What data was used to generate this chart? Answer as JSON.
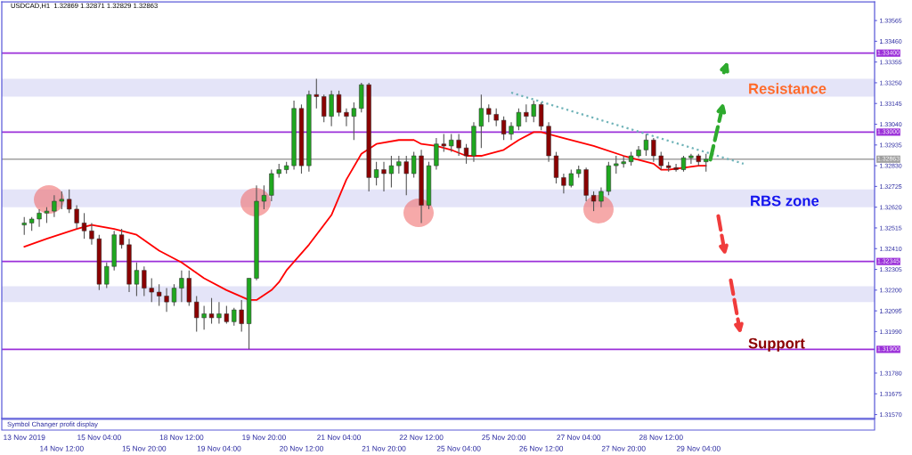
{
  "chart_data": {
    "type": "candlestick",
    "title": "USDCAD,H1  1.32869 1.32871 1.32829 1.32863",
    "categories": [
      "13 Nov 2019",
      null,
      null,
      null,
      null,
      "14 Nov 12:00",
      null,
      null,
      null,
      null,
      "15 Nov 04:00",
      null,
      null,
      null,
      null,
      null,
      "15 Nov 20:00",
      null,
      null,
      null,
      null,
      "18 Nov 12:00",
      null,
      null,
      null,
      null,
      "19 Nov 04:00",
      null,
      null,
      null,
      null,
      null,
      "19 Nov 20:00",
      null,
      null,
      null,
      null,
      "20 Nov 12:00",
      null,
      null,
      null,
      null,
      "21 Nov 04:00",
      null,
      null,
      null,
      null,
      null,
      "21 Nov 20:00",
      null,
      null,
      null,
      null,
      "22 Nov 12:00",
      null,
      null,
      null,
      null,
      "25 Nov 04:00",
      null,
      null,
      null,
      null,
      null,
      "25 Nov 20:00",
      null,
      null,
      null,
      null,
      "26 Nov 12:00",
      null,
      null,
      null,
      null,
      "27 Nov 04:00",
      null,
      null,
      null,
      null,
      null,
      "27 Nov 20:00",
      null,
      null,
      null,
      null,
      "28 Nov 12:00",
      null,
      null,
      null,
      null,
      "29 Nov 04:00",
      null,
      null,
      null,
      null,
      null,
      null,
      null,
      null,
      null,
      null,
      null,
      null,
      null,
      null,
      null,
      null,
      null,
      null,
      null,
      null,
      null,
      null,
      null
    ],
    "ohlc": [
      [
        1.3253,
        1.3257,
        1.3248,
        1.3254
      ],
      [
        1.3254,
        1.3257,
        1.325,
        1.3256
      ],
      [
        1.3256,
        1.3261,
        1.3252,
        1.3259
      ],
      [
        1.3259,
        1.3262,
        1.3254,
        1.326
      ],
      [
        1.326,
        1.3268,
        1.3257,
        1.3265
      ],
      [
        1.3265,
        1.327,
        1.3261,
        1.3266
      ],
      [
        1.3266,
        1.3271,
        1.3259,
        1.3261
      ],
      [
        1.3261,
        1.3263,
        1.3251,
        1.3254
      ],
      [
        1.3254,
        1.3259,
        1.3246,
        1.325
      ],
      [
        1.325,
        1.3254,
        1.3243,
        1.3246
      ],
      [
        1.3246,
        1.3248,
        1.322,
        1.3223
      ],
      [
        1.3223,
        1.3234,
        1.3221,
        1.3232
      ],
      [
        1.3232,
        1.325,
        1.323,
        1.3248
      ],
      [
        1.3248,
        1.3251,
        1.3241,
        1.3243
      ],
      [
        1.3243,
        1.3246,
        1.3219,
        1.3223
      ],
      [
        1.3223,
        1.3234,
        1.3217,
        1.323
      ],
      [
        1.323,
        1.3232,
        1.3217,
        1.3221
      ],
      [
        1.3221,
        1.3226,
        1.3214,
        1.3219
      ],
      [
        1.3219,
        1.3223,
        1.3212,
        1.3217
      ],
      [
        1.3217,
        1.3221,
        1.3209,
        1.3214
      ],
      [
        1.3214,
        1.3223,
        1.3212,
        1.3221
      ],
      [
        1.3221,
        1.323,
        1.3214,
        1.3226
      ],
      [
        1.3226,
        1.323,
        1.3212,
        1.3214
      ],
      [
        1.3214,
        1.3217,
        1.3199,
        1.3206
      ],
      [
        1.3206,
        1.3212,
        1.32,
        1.3208
      ],
      [
        1.3208,
        1.3216,
        1.3203,
        1.3206
      ],
      [
        1.3206,
        1.3214,
        1.3203,
        1.3208
      ],
      [
        1.3208,
        1.3212,
        1.3203,
        1.3204
      ],
      [
        1.3204,
        1.3211,
        1.3202,
        1.321
      ],
      [
        1.321,
        1.3215,
        1.3199,
        1.3203
      ],
      [
        1.3203,
        1.3226,
        1.319,
        1.3226
      ],
      [
        1.3226,
        1.3273,
        1.3225,
        1.3265
      ],
      [
        1.3265,
        1.3273,
        1.3261,
        1.3268
      ],
      [
        1.3268,
        1.3281,
        1.3265,
        1.3279
      ],
      [
        1.3279,
        1.3284,
        1.3277,
        1.3281
      ],
      [
        1.3281,
        1.3285,
        1.3279,
        1.3283
      ],
      [
        1.3283,
        1.3316,
        1.3281,
        1.3312
      ],
      [
        1.3312,
        1.3314,
        1.3279,
        1.3283
      ],
      [
        1.3283,
        1.3321,
        1.328,
        1.3319
      ],
      [
        1.3319,
        1.3327,
        1.3312,
        1.3318
      ],
      [
        1.3318,
        1.3319,
        1.3305,
        1.3308
      ],
      [
        1.3308,
        1.3321,
        1.3303,
        1.3319
      ],
      [
        1.3319,
        1.3321,
        1.3308,
        1.331
      ],
      [
        1.331,
        1.3312,
        1.3303,
        1.3308
      ],
      [
        1.3308,
        1.3315,
        1.3296,
        1.3312
      ],
      [
        1.3312,
        1.3325,
        1.331,
        1.3324
      ],
      [
        1.3324,
        1.3325,
        1.327,
        1.3277
      ],
      [
        1.3277,
        1.3285,
        1.3273,
        1.3281
      ],
      [
        1.3281,
        1.3285,
        1.327,
        1.3279
      ],
      [
        1.3279,
        1.3288,
        1.3272,
        1.3283
      ],
      [
        1.3283,
        1.3288,
        1.3279,
        1.3285
      ],
      [
        1.3285,
        1.3288,
        1.3268,
        1.3279
      ],
      [
        1.3279,
        1.329,
        1.3277,
        1.3288
      ],
      [
        1.3288,
        1.3291,
        1.3254,
        1.3263
      ],
      [
        1.3263,
        1.3285,
        1.3261,
        1.3283
      ],
      [
        1.3283,
        1.3297,
        1.3281,
        1.3294
      ],
      [
        1.3294,
        1.3299,
        1.329,
        1.3293
      ],
      [
        1.3293,
        1.3299,
        1.329,
        1.3296
      ],
      [
        1.3296,
        1.3299,
        1.3288,
        1.3292
      ],
      [
        1.3292,
        1.3294,
        1.3284,
        1.3288
      ],
      [
        1.3288,
        1.3305,
        1.3285,
        1.3303
      ],
      [
        1.3303,
        1.3319,
        1.3292,
        1.3312
      ],
      [
        1.3312,
        1.3314,
        1.3305,
        1.3309
      ],
      [
        1.3309,
        1.3312,
        1.3303,
        1.3306
      ],
      [
        1.3306,
        1.3308,
        1.3296,
        1.3299
      ],
      [
        1.3299,
        1.3305,
        1.3296,
        1.3303
      ],
      [
        1.3303,
        1.3312,
        1.3301,
        1.331
      ],
      [
        1.331,
        1.3314,
        1.3305,
        1.3308
      ],
      [
        1.3308,
        1.3316,
        1.3305,
        1.3314
      ],
      [
        1.3314,
        1.3315,
        1.3301,
        1.3303
      ],
      [
        1.3303,
        1.3305,
        1.3285,
        1.3288
      ],
      [
        1.3288,
        1.329,
        1.3274,
        1.3277
      ],
      [
        1.3277,
        1.3279,
        1.3269,
        1.3273
      ],
      [
        1.3273,
        1.3281,
        1.3272,
        1.3279
      ],
      [
        1.3279,
        1.3283,
        1.3277,
        1.3281
      ],
      [
        1.3281,
        1.3282,
        1.3265,
        1.3268
      ],
      [
        1.3268,
        1.327,
        1.326,
        1.3265
      ],
      [
        1.3265,
        1.3272,
        1.3262,
        1.327
      ],
      [
        1.327,
        1.3285,
        1.3268,
        1.3283
      ],
      [
        1.3283,
        1.3288,
        1.3279,
        1.3284
      ],
      [
        1.3284,
        1.3288,
        1.3282,
        1.3285
      ],
      [
        1.3285,
        1.329,
        1.3283,
        1.3288
      ],
      [
        1.3288,
        1.3293,
        1.3287,
        1.3291
      ],
      [
        1.3291,
        1.3299,
        1.3288,
        1.3296
      ],
      [
        1.3296,
        1.3297,
        1.3285,
        1.3288
      ],
      [
        1.3288,
        1.329,
        1.3281,
        1.3283
      ],
      [
        1.3283,
        1.3285,
        1.328,
        1.3282
      ],
      [
        1.3282,
        1.3284,
        1.328,
        1.3281
      ],
      [
        1.3281,
        1.3288,
        1.328,
        1.3287
      ],
      [
        1.3287,
        1.3289,
        1.3284,
        1.3288
      ],
      [
        1.3288,
        1.3289,
        1.3283,
        1.3285
      ],
      [
        1.3285,
        1.3289,
        1.328,
        1.32863
      ],
      null,
      null,
      null,
      null,
      null,
      null,
      null,
      null,
      null,
      null,
      null,
      null,
      null,
      null,
      null,
      null,
      null,
      null,
      null,
      null,
      null,
      null
    ],
    "series": [
      {
        "type": "line",
        "color": "#ff0000",
        "values": [
          1.3242,
          null,
          null,
          1.3246,
          null,
          null,
          null,
          1.3251,
          null,
          1.3253,
          null,
          null,
          1.3251,
          null,
          null,
          1.3248,
          null,
          null,
          1.324,
          null,
          null,
          1.3234,
          null,
          null,
          1.3226,
          null,
          null,
          1.322,
          null,
          null,
          1.3215,
          1.3215,
          null,
          1.322,
          1.3224,
          1.323,
          null,
          null,
          1.3243,
          null,
          null,
          1.3258,
          null,
          1.3276,
          null,
          1.3289,
          null,
          1.3294,
          null,
          null,
          1.3296,
          null,
          1.3296,
          1.3294,
          null,
          1.3293,
          null,
          1.3291,
          null,
          1.3288,
          null,
          1.3288,
          null,
          null,
          1.3291,
          null,
          1.3296,
          null,
          1.33,
          1.33,
          null,
          null,
          1.3297,
          null,
          null,
          null,
          1.3293,
          null,
          null,
          null,
          1.3288,
          null,
          null,
          null,
          1.3284,
          1.3281,
          1.3281,
          null,
          1.3282,
          null,
          1.3283,
          1.3283,
          null,
          null,
          null,
          null,
          null,
          null,
          null,
          null,
          null,
          null,
          null,
          null,
          null,
          null,
          null,
          null,
          null,
          null,
          null,
          null,
          null,
          null
        ]
      },
      {
        "type": "line",
        "color": "#6fb3b8",
        "line_style": "dotted",
        "values": [
          null,
          null,
          null,
          null,
          null,
          null,
          null,
          null,
          null,
          null,
          null,
          null,
          null,
          null,
          null,
          null,
          null,
          null,
          null,
          null,
          null,
          null,
          null,
          null,
          null,
          null,
          null,
          null,
          null,
          null,
          null,
          null,
          null,
          null,
          null,
          null,
          null,
          null,
          null,
          null,
          null,
          null,
          null,
          null,
          null,
          null,
          null,
          null,
          null,
          null,
          null,
          null,
          null,
          null,
          null,
          null,
          null,
          null,
          null,
          null,
          null,
          null,
          null,
          null,
          null,
          1.332,
          null,
          null,
          null,
          null,
          null,
          null,
          null,
          null,
          null,
          null,
          null,
          null,
          null,
          null,
          null,
          null,
          null,
          null,
          null,
          null,
          null,
          null,
          null,
          null,
          null,
          null,
          null,
          null,
          null,
          null,
          1.3284,
          null,
          null,
          null,
          null,
          null,
          null,
          null,
          null,
          null,
          null,
          null,
          null,
          null,
          null,
          null,
          null,
          null
        ]
      }
    ],
    "ylim": [
      1.3155,
      1.3366
    ],
    "yticks": [
      {
        "value": 1.33565,
        "label": "1.33565"
      },
      {
        "value": 1.3346,
        "label": "1.33460"
      },
      {
        "value": 1.33355,
        "label": "1.33355"
      },
      {
        "value": 1.3325,
        "label": "1.33250"
      },
      {
        "value": 1.33145,
        "label": "1.33145"
      },
      {
        "value": 1.3304,
        "label": "1.33040"
      },
      {
        "value": 1.32935,
        "label": "1.32935"
      },
      {
        "value": 1.3283,
        "label": "1.32830"
      },
      {
        "value": 1.32725,
        "label": "1.32725"
      },
      {
        "value": 1.3262,
        "label": "1.32620"
      },
      {
        "value": 1.32515,
        "label": "1.32515"
      },
      {
        "value": 1.3241,
        "label": "1.32410"
      },
      {
        "value": 1.32305,
        "label": "1.32305"
      },
      {
        "value": 1.322,
        "label": "1.32200"
      },
      {
        "value": 1.32095,
        "label": "1.32095"
      },
      {
        "value": 1.3199,
        "label": "1.31990"
      },
      {
        "value": 1.3178,
        "label": "1.31780"
      },
      {
        "value": 1.31675,
        "label": "1.31675"
      },
      {
        "value": 1.3157,
        "label": "1.31570"
      }
    ],
    "ref_lines": [
      {
        "axis": "y",
        "value": 1.334,
        "label": "1.33400",
        "color": "#9b30d9"
      },
      {
        "axis": "y",
        "value": 1.33,
        "label": "1.33000",
        "color": "#9b30d9"
      },
      {
        "axis": "y",
        "value": 1.32863,
        "label": "1.32863",
        "color": "#a0a0a0"
      },
      {
        "axis": "y",
        "value": 1.32345,
        "label": "1.32345",
        "color": "#9b30d9"
      },
      {
        "axis": "y",
        "value": 1.319,
        "label": "1.31900",
        "color": "#9b30d9"
      }
    ],
    "bands": [
      {
        "axis": "y",
        "from": 1.3318,
        "to": 1.3327,
        "color": "#e4e4f8"
      },
      {
        "axis": "y",
        "from": 1.3262,
        "to": 1.3271,
        "color": "#e4e4f8"
      },
      {
        "axis": "y",
        "from": 1.3214,
        "to": 1.3222,
        "color": "#e4e4f8"
      }
    ],
    "annotations": [
      "Resistance",
      "RBS zone",
      "Support",
      "Symbol Changer profit display"
    ]
  }
}
